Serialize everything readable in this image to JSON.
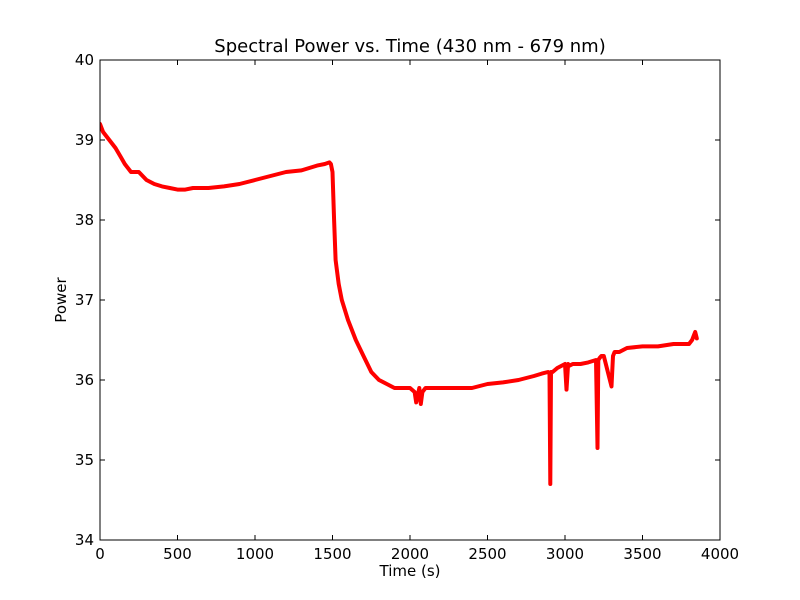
{
  "chart_data": {
    "type": "line",
    "title": "Spectral Power vs. Time (430 nm - 679 nm)",
    "xlabel": "Time (s)",
    "ylabel": "Power",
    "xlim": [
      0,
      4000
    ],
    "ylim": [
      34,
      40
    ],
    "xticks": [
      0,
      500,
      1000,
      1500,
      2000,
      2500,
      3000,
      3500,
      4000
    ],
    "yticks": [
      34,
      35,
      36,
      37,
      38,
      39,
      40
    ],
    "grid": false,
    "series": [
      {
        "color": "#ff0000",
        "x": [
          0,
          20,
          40,
          60,
          80,
          100,
          130,
          160,
          200,
          250,
          300,
          350,
          400,
          450,
          500,
          550,
          600,
          650,
          700,
          800,
          900,
          1000,
          1100,
          1200,
          1300,
          1400,
          1450,
          1480,
          1490,
          1500,
          1510,
          1520,
          1540,
          1560,
          1600,
          1650,
          1700,
          1750,
          1800,
          1850,
          1900,
          2000,
          2030,
          2040,
          2060,
          2070,
          2080,
          2100,
          2200,
          2300,
          2400,
          2500,
          2600,
          2700,
          2800,
          2850,
          2890,
          2900,
          2905,
          2910,
          2920,
          2950,
          3000,
          3010,
          3020,
          3030,
          3050,
          3100,
          3150,
          3200,
          3210,
          3215,
          3225,
          3235,
          3250,
          3300,
          3310,
          3320,
          3340,
          3350,
          3400,
          3500,
          3600,
          3700,
          3800,
          3820,
          3840,
          3850
        ],
        "y": [
          39.2,
          39.1,
          39.05,
          39.0,
          38.95,
          38.9,
          38.8,
          38.7,
          38.6,
          38.6,
          38.5,
          38.45,
          38.42,
          38.4,
          38.38,
          38.38,
          38.4,
          38.4,
          38.4,
          38.42,
          38.45,
          38.5,
          38.55,
          38.6,
          38.62,
          38.68,
          38.7,
          38.72,
          38.7,
          38.6,
          38.0,
          37.5,
          37.2,
          37.0,
          36.75,
          36.5,
          36.3,
          36.1,
          36.0,
          35.95,
          35.9,
          35.9,
          35.85,
          35.72,
          35.9,
          35.7,
          35.85,
          35.9,
          35.9,
          35.9,
          35.9,
          35.95,
          35.97,
          36.0,
          36.05,
          36.08,
          36.1,
          36.08,
          34.7,
          36.1,
          36.1,
          36.15,
          36.2,
          35.88,
          36.2,
          36.18,
          36.2,
          36.2,
          36.22,
          36.25,
          35.15,
          36.25,
          36.28,
          36.3,
          36.3,
          35.92,
          36.3,
          36.35,
          36.35,
          36.35,
          36.4,
          36.42,
          36.42,
          36.45,
          36.45,
          36.5,
          36.6,
          36.52
        ]
      }
    ]
  }
}
